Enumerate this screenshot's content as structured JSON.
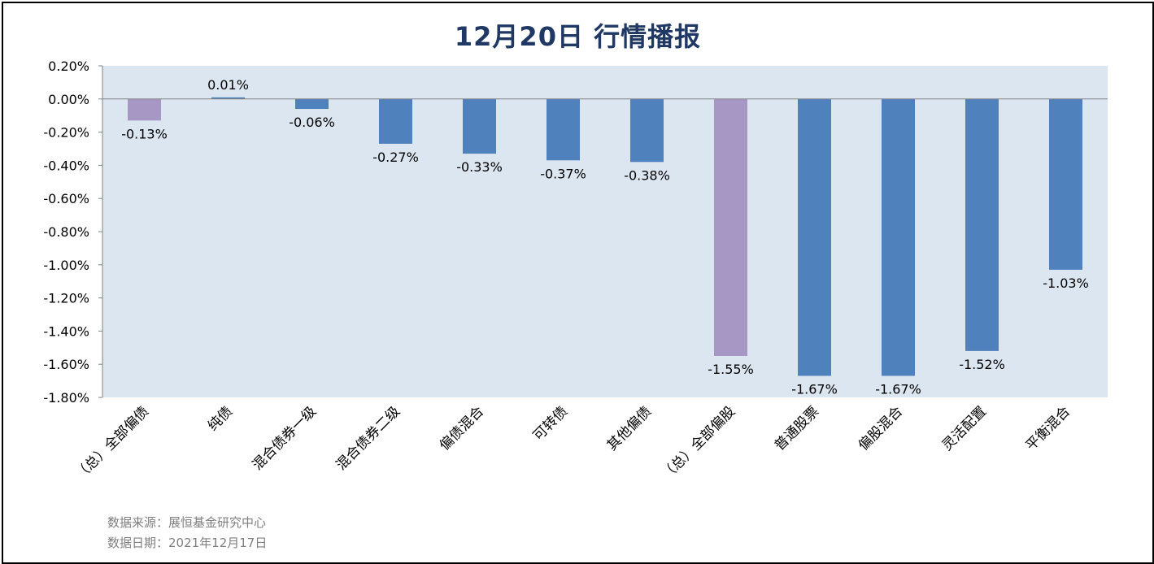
{
  "title": "12月20日  行情播报",
  "source_line1": "数据来源：展恒基金研究中心",
  "source_line2": "数据日期：2021年12月17日",
  "colors": {
    "plot_bg": "#dce6f1",
    "bar_blue": "#4f81bd",
    "bar_purple": "#a797c5",
    "title": "#1f3864"
  },
  "chart_data": {
    "type": "bar",
    "title": "12月20日  行情播报",
    "xlabel": "",
    "ylabel": "",
    "ylim": [
      -1.8,
      0.2
    ],
    "yticks": [
      0.2,
      0.0,
      -0.2,
      -0.4,
      -0.6,
      -0.8,
      -1.0,
      -1.2,
      -1.4,
      -1.6,
      -1.8
    ],
    "ytick_labels": [
      "0.20%",
      "0.00%",
      "-0.20%",
      "-0.40%",
      "-0.60%",
      "-0.80%",
      "-1.00%",
      "-1.20%",
      "-1.40%",
      "-1.60%",
      "-1.80%"
    ],
    "grid": false,
    "legend": "none",
    "categories": [
      "（总）全部偏债",
      "纯债",
      "混合债券一级",
      "混合债券二级",
      "偏债混合",
      "可转债",
      "其他偏债",
      "（总）全部偏股",
      "普通股票",
      "偏股混合",
      "灵活配置",
      "平衡混合"
    ],
    "values": [
      -0.13,
      0.01,
      -0.06,
      -0.27,
      -0.33,
      -0.37,
      -0.38,
      -1.55,
      -1.67,
      -1.67,
      -1.52,
      -1.03
    ],
    "data_labels": [
      "-0.13%",
      "0.01%",
      "-0.06%",
      "-0.27%",
      "-0.33%",
      "-0.37%",
      "-0.38%",
      "-1.55%",
      "-1.67%",
      "-1.67%",
      "-1.52%",
      "-1.03%"
    ],
    "highlight": [
      true,
      false,
      false,
      false,
      false,
      false,
      false,
      true,
      false,
      false,
      false,
      false
    ]
  }
}
